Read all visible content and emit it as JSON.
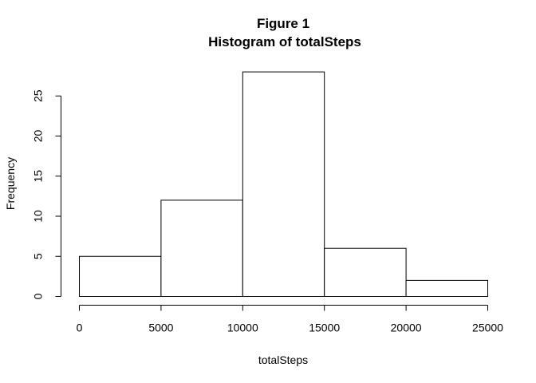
{
  "chart_data": {
    "type": "bar",
    "title": "Figure 1",
    "subtitle": "Histogram of totalSteps",
    "xlabel": "totalSteps",
    "ylabel": "Frequency",
    "bins": [
      {
        "from": 0,
        "to": 5000,
        "count": 5
      },
      {
        "from": 5000,
        "to": 10000,
        "count": 12
      },
      {
        "from": 10000,
        "to": 15000,
        "count": 28
      },
      {
        "from": 15000,
        "to": 20000,
        "count": 6
      },
      {
        "from": 20000,
        "to": 25000,
        "count": 2
      }
    ],
    "x_ticks": [
      "0",
      "5000",
      "10000",
      "15000",
      "20000",
      "25000"
    ],
    "y_ticks": [
      "0",
      "5",
      "10",
      "15",
      "20",
      "25"
    ],
    "xlim": [
      0,
      25000
    ],
    "ylim": [
      0,
      28
    ],
    "grid": false,
    "colors": {
      "bar_fill": "#ffffff",
      "bar_stroke": "#000000"
    }
  }
}
